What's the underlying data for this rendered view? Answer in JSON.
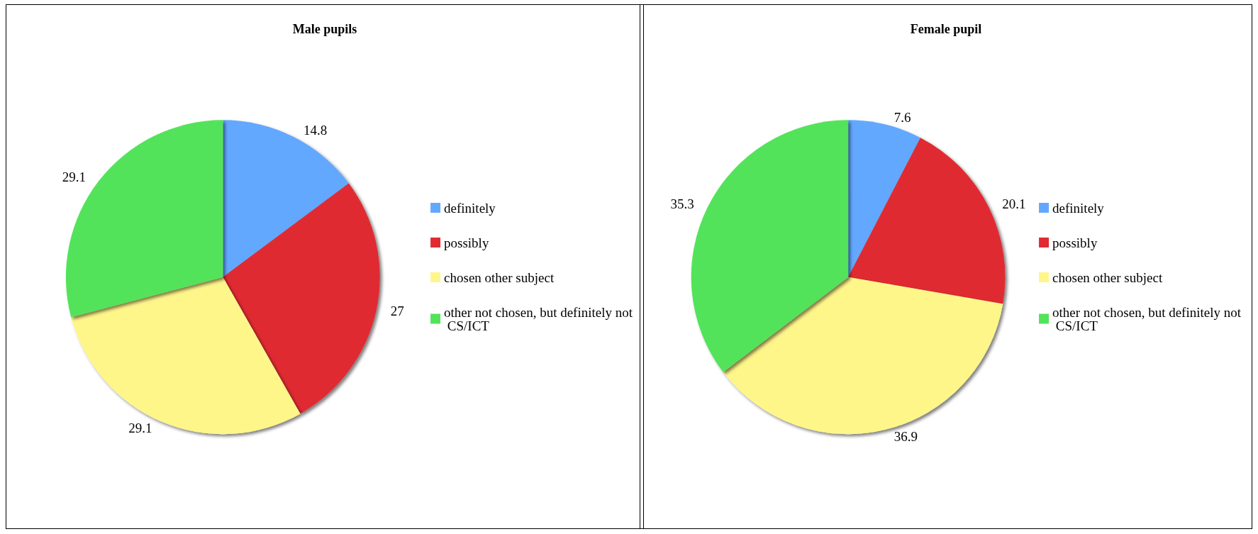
{
  "chart_data": [
    {
      "type": "pie",
      "title": "Male pupils",
      "categories": [
        "definitely",
        "possibly",
        "chosen other subject",
        "other not chosen, but definitely not CS/ICT"
      ],
      "values": [
        14.8,
        27,
        29.1,
        29.1
      ],
      "colors": [
        "#63a8ff",
        "#e02b30",
        "#fff68a",
        "#52e35a"
      ],
      "data_labels": true,
      "legend": "right"
    },
    {
      "type": "pie",
      "title": "Female pupil",
      "categories": [
        "definitely",
        "possibly",
        "chosen other subject",
        "other not chosen, but definitely not CS/ICT"
      ],
      "values": [
        7.6,
        20.1,
        36.9,
        35.3
      ],
      "colors": [
        "#63a8ff",
        "#e02b30",
        "#fff68a",
        "#52e35a"
      ],
      "data_labels": true,
      "legend": "right"
    }
  ]
}
